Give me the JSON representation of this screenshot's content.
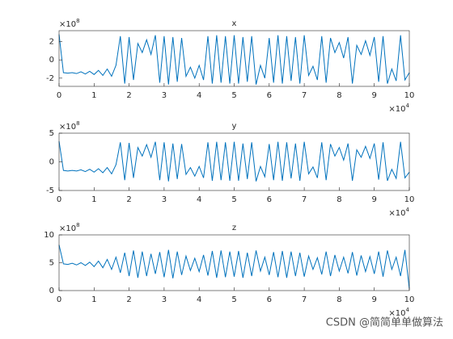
{
  "chart_data": [
    {
      "type": "line",
      "title": "x",
      "x": [
        0,
        0.125,
        0.25,
        0.375,
        0.5,
        0.625,
        0.75,
        0.875,
        1,
        1.125,
        1.25,
        1.375,
        1.5,
        1.625,
        1.75,
        1.875,
        2,
        2.125,
        2.25,
        2.375,
        2.5,
        2.625,
        2.75,
        2.875,
        3,
        3.125,
        3.25,
        3.375,
        3.5,
        3.625,
        3.75,
        3.875,
        4,
        4.125,
        4.25,
        4.375,
        4.5,
        4.625,
        4.75,
        4.875,
        5,
        5.125,
        5.25,
        5.375,
        5.5,
        5.625,
        5.75,
        5.875,
        6,
        6.125,
        6.25,
        6.375,
        6.5,
        6.625,
        6.75,
        6.875,
        7,
        7.125,
        7.25,
        7.375,
        7.5,
        7.625,
        7.75,
        7.875,
        8,
        8.125,
        8.25,
        8.375,
        8.5,
        8.625,
        8.75,
        8.875,
        9,
        9.125,
        9.25,
        9.375,
        9.5,
        9.625,
        9.75,
        9.875,
        10
      ],
      "series": [
        {
          "color": "#0072bd",
          "values": [
            2.8,
            -1.4,
            -1.45,
            -1.4,
            -1.5,
            -1.3,
            -1.55,
            -1.25,
            -1.6,
            -1.15,
            -1.7,
            -1.0,
            -1.8,
            -0.6,
            2.6,
            -2.6,
            2.5,
            -2.2,
            1.8,
            0.8,
            2.2,
            0.6,
            2.7,
            -2.5,
            2.6,
            -2.7,
            2.5,
            -2.4,
            2.4,
            -1.8,
            -0.8,
            -2.0,
            -0.6,
            -2.2,
            2.6,
            -2.6,
            2.7,
            -2.5,
            2.6,
            -2.6,
            2.7,
            -2.6,
            2.5,
            -2.4,
            2.6,
            -2.7,
            -0.6,
            -2.0,
            2.4,
            -2.5,
            2.7,
            -2.6,
            2.6,
            -2.3,
            2.5,
            -2.6,
            2.7,
            -1.7,
            -0.7,
            -2.2,
            2.6,
            -2.5,
            2.4,
            0.8,
            1.9,
            0.2,
            2.5,
            -2.6,
            1.6,
            0.6,
            2.1,
            0.5,
            2.5,
            -2.4,
            2.6,
            -2.6,
            -1.0,
            -2.3,
            2.7,
            -2.2,
            -1.4
          ]
        }
      ],
      "xlim": [
        0,
        10
      ],
      "xticks": [
        0,
        1,
        2,
        3,
        4,
        5,
        6,
        7,
        8,
        9,
        10
      ],
      "ylim": [
        -2.9,
        3.2
      ],
      "yticks": [
        -2,
        0,
        2
      ],
      "x_multiplier": "×10",
      "x_power": "4",
      "y_multiplier": "×10",
      "y_power": "8"
    },
    {
      "type": "line",
      "title": "y",
      "x": [
        0,
        0.125,
        0.25,
        0.375,
        0.5,
        0.625,
        0.75,
        0.875,
        1,
        1.125,
        1.25,
        1.375,
        1.5,
        1.625,
        1.75,
        1.875,
        2,
        2.125,
        2.25,
        2.375,
        2.5,
        2.625,
        2.75,
        2.875,
        3,
        3.125,
        3.25,
        3.375,
        3.5,
        3.625,
        3.75,
        3.875,
        4,
        4.125,
        4.25,
        4.375,
        4.5,
        4.625,
        4.75,
        4.875,
        5,
        5.125,
        5.25,
        5.375,
        5.5,
        5.625,
        5.75,
        5.875,
        6,
        6.125,
        6.25,
        6.375,
        6.5,
        6.625,
        6.75,
        6.875,
        7,
        7.125,
        7.25,
        7.375,
        7.5,
        7.625,
        7.75,
        7.875,
        8,
        8.125,
        8.25,
        8.375,
        8.5,
        8.625,
        8.75,
        8.875,
        9,
        9.125,
        9.25,
        9.375,
        9.5,
        9.625,
        9.75,
        9.875,
        10
      ],
      "series": [
        {
          "color": "#0072bd",
          "values": [
            3.6,
            -1.5,
            -1.6,
            -1.5,
            -1.6,
            -1.4,
            -1.7,
            -1.3,
            -1.8,
            -1.2,
            -1.9,
            -1.0,
            -2.1,
            -0.5,
            3.4,
            -3.2,
            3.3,
            -2.8,
            2.5,
            1.0,
            3.0,
            0.8,
            3.5,
            -3.2,
            3.4,
            -3.4,
            3.2,
            -3.0,
            3.1,
            -2.2,
            -1.0,
            -2.5,
            -0.8,
            -2.8,
            3.4,
            -3.3,
            3.5,
            -3.2,
            3.4,
            -3.3,
            3.5,
            -3.3,
            3.2,
            -3.0,
            3.4,
            -3.4,
            -0.8,
            -2.6,
            3.1,
            -3.2,
            3.5,
            -3.3,
            3.4,
            -2.9,
            3.2,
            -3.3,
            3.5,
            -2.1,
            -0.9,
            -2.8,
            3.4,
            -3.2,
            3.1,
            1.0,
            2.5,
            0.3,
            3.2,
            -3.3,
            2.1,
            0.8,
            2.7,
            0.6,
            3.2,
            -3.1,
            3.4,
            -3.3,
            -1.3,
            -2.9,
            3.5,
            -2.8,
            -1.8
          ]
        }
      ],
      "xlim": [
        0,
        10
      ],
      "xticks": [
        0,
        1,
        2,
        3,
        4,
        5,
        6,
        7,
        8,
        9,
        10
      ],
      "ylim": [
        -5,
        5
      ],
      "yticks": [
        -5,
        0,
        5
      ],
      "x_multiplier": "×10",
      "x_power": "4",
      "y_multiplier": "×10",
      "y_power": "8"
    },
    {
      "type": "line",
      "title": "z",
      "x": [
        0,
        0.125,
        0.25,
        0.375,
        0.5,
        0.625,
        0.75,
        0.875,
        1,
        1.125,
        1.25,
        1.375,
        1.5,
        1.625,
        1.75,
        1.875,
        2,
        2.125,
        2.25,
        2.375,
        2.5,
        2.625,
        2.75,
        2.875,
        3,
        3.125,
        3.25,
        3.375,
        3.5,
        3.625,
        3.75,
        3.875,
        4,
        4.125,
        4.25,
        4.375,
        4.5,
        4.625,
        4.75,
        4.875,
        5,
        5.125,
        5.25,
        5.375,
        5.5,
        5.625,
        5.75,
        5.875,
        6,
        6.125,
        6.25,
        6.375,
        6.5,
        6.625,
        6.75,
        6.875,
        7,
        7.125,
        7.25,
        7.375,
        7.5,
        7.625,
        7.75,
        7.875,
        8,
        8.125,
        8.25,
        8.375,
        8.5,
        8.625,
        8.75,
        8.875,
        9,
        9.125,
        9.25,
        9.375,
        9.5,
        9.625,
        9.75,
        9.875,
        10
      ],
      "series": [
        {
          "color": "#0072bd",
          "values": [
            8.2,
            4.8,
            4.7,
            4.9,
            4.6,
            5.0,
            4.5,
            5.1,
            4.3,
            5.3,
            4.1,
            5.6,
            3.8,
            6.0,
            3.2,
            6.8,
            2.6,
            7.2,
            2.3,
            7.0,
            2.6,
            6.6,
            3.0,
            6.9,
            2.4,
            7.3,
            2.2,
            7.0,
            2.8,
            6.2,
            3.6,
            5.8,
            3.4,
            6.4,
            2.7,
            7.1,
            2.3,
            7.2,
            2.4,
            7.0,
            2.5,
            7.1,
            2.3,
            6.8,
            2.6,
            7.2,
            3.5,
            6.0,
            2.8,
            6.9,
            2.4,
            7.1,
            2.3,
            7.0,
            2.6,
            6.8,
            2.5,
            6.2,
            3.8,
            5.9,
            2.9,
            7.0,
            2.6,
            6.4,
            3.5,
            6.0,
            3.1,
            6.9,
            2.7,
            6.3,
            3.4,
            6.1,
            3.0,
            7.0,
            2.5,
            7.2,
            3.8,
            6.0,
            2.6,
            7.3,
            0.3
          ]
        }
      ],
      "xlim": [
        0,
        10
      ],
      "xticks": [
        0,
        1,
        2,
        3,
        4,
        5,
        6,
        7,
        8,
        9,
        10
      ],
      "ylim": [
        0,
        10
      ],
      "yticks": [
        0,
        5,
        10
      ],
      "x_multiplier": "×10",
      "x_power": "4",
      "y_multiplier": "×10",
      "y_power": "8"
    }
  ],
  "watermark": "CSDN @简简单单做算法"
}
